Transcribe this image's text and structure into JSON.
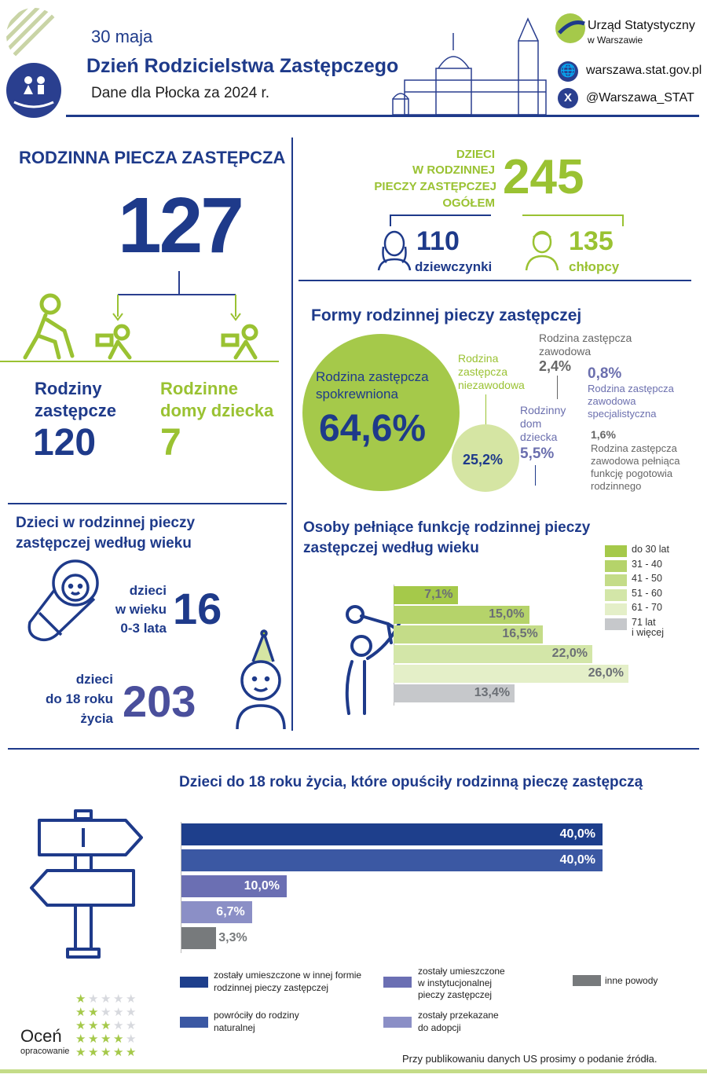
{
  "header": {
    "date": "30 maja",
    "title": "Dzień Rodzicielstwa Zastępczego",
    "subtitle": "Dane dla Płocka za 2024 r.",
    "org_line1": "Urząd Statystyczny",
    "org_line2": "w Warszawie",
    "website": "warszawa.stat.gov.pl",
    "twitter": "@Warszawa_STAT",
    "icons": [
      "family-hands-icon",
      "globe-icon",
      "x-logo-icon",
      "cathedral-illustration"
    ]
  },
  "foster": {
    "title": "RODZINNA PIECZA ZASTĘPCZA",
    "total": "127",
    "families_label_1": "Rodziny",
    "families_label_2": "zastępcze",
    "families_value": "120",
    "homes_label_1": "Rodzinne",
    "homes_label_2": "domy dziecka",
    "homes_value": "7"
  },
  "children_total": {
    "label_1": "DZIECI",
    "label_2": "W RODZINNEJ",
    "label_3": "PIECZY ZASTĘPCZEJ",
    "label_4": "OGÓŁEM",
    "value": "245",
    "girls_value": "110",
    "girls_label": "dziewczynki",
    "boys_value": "135",
    "boys_label": "chłopcy"
  },
  "forms": {
    "title": "Formy rodzinnej pieczy zastępczej",
    "kin_label_1": "Rodzina zastępcza",
    "kin_label_2": "spokrewniona",
    "kin_value": "64,6%",
    "nonprof_label_1": "Rodzina",
    "nonprof_label_2": "zastępcza",
    "nonprof_label_3": "niezawodowa",
    "nonprof_value": "25,2%",
    "prof_label_1": "Rodzina zastępcza",
    "prof_label_2": "zawodowa",
    "prof_value": "2,4%",
    "home_label_1": "Rodzinny",
    "home_label_2": "dom",
    "home_label_3": "dziecka",
    "home_value": "5,5%",
    "spec_value": "0,8%",
    "spec_label_1": "Rodzina zastępcza",
    "spec_label_2": "zawodowa",
    "spec_label_3": "specjalistyczna",
    "emerg_value": "1,6%",
    "emerg_label_1": "Rodzina zastępcza",
    "emerg_label_2": "zawodowa pełniąca",
    "emerg_label_3": "funkcję pogotowia",
    "emerg_label_4": "rodzinnego"
  },
  "children_age": {
    "title_1": "Dzieci w rodzinnej pieczy",
    "title_2": "zastępczej według wieku",
    "infant_label_1": "dzieci",
    "infant_label_2": "w wieku",
    "infant_label_3": "0-3 lata",
    "infant_value": "16",
    "minor_label_1": "dzieci",
    "minor_label_2": "do 18 roku",
    "minor_label_3": "życia",
    "minor_value": "203"
  },
  "carers_chart_text": {
    "title_1": "Osoby pełniące funkcję rodzinnej pieczy",
    "title_2": "zastępczej według wieku"
  },
  "left_chart_text": {
    "title": "Dzieci do 18 roku życia, które opuściły rodzinną pieczę zastępczą",
    "legend_1a": "zostały umieszczone w innej formie",
    "legend_1b": "rodzinnej pieczy zastępczej",
    "legend_2a": "powróciły do rodziny",
    "legend_2b": "naturalnej",
    "legend_3a": "zostały umieszczone",
    "legend_3b": "w instytucjonalnej",
    "legend_3c": "pieczy zastępczej",
    "legend_4a": "zostały przekazane",
    "legend_4b": "do adopcji",
    "legend_5": "inne powody"
  },
  "footer": {
    "rate_1": "Oceń",
    "rate_2": "opracowanie",
    "note": "Przy publikowaniu danych US prosimy o podanie źródła."
  },
  "colors": {
    "navy": "#1e3a8a",
    "green": "#9ac232",
    "gray": "#8c8c8c"
  },
  "chart_data": [
    {
      "type": "bar",
      "title": "Osoby pełniące funkcję rodzinnej pieczy zastępczej według wieku",
      "orientation": "horizontal",
      "categories": [
        "do 30 lat",
        "31 - 40",
        "41 - 50",
        "51 - 60",
        "61 - 70",
        "71 lat i więcej"
      ],
      "values": [
        7.1,
        15.0,
        16.5,
        22.0,
        26.0,
        13.4
      ],
      "labels": [
        "7,1%",
        "15,0%",
        "16,5%",
        "22,0%",
        "26,0%",
        "13,4%"
      ],
      "colors": [
        "#a5c94a",
        "#b5d36a",
        "#c4dc88",
        "#d3e6a8",
        "#e4efc8",
        "#c6c8cb"
      ],
      "legend": "top-right"
    },
    {
      "type": "bar",
      "title": "Dzieci do 18 roku życia, które opuściły rodzinną pieczę zastępczą",
      "orientation": "horizontal",
      "categories": [
        "zostały umieszczone w innej formie rodzinnej pieczy zastępczej",
        "powróciły do rodziny naturalnej",
        "zostały umieszczone w instytucjonalnej pieczy zastępczej",
        "zostały przekazane do adopcji",
        "inne powody"
      ],
      "values": [
        40.0,
        40.0,
        10.0,
        6.7,
        3.3
      ],
      "labels": [
        "40,0%",
        "40,0%",
        "10,0%",
        "6,7%",
        "3,3%"
      ],
      "colors": [
        "#1e3f8c",
        "#3b58a3",
        "#6b6fb3",
        "#8b8fc6",
        "#777a7c"
      ],
      "legend": "bottom"
    }
  ]
}
